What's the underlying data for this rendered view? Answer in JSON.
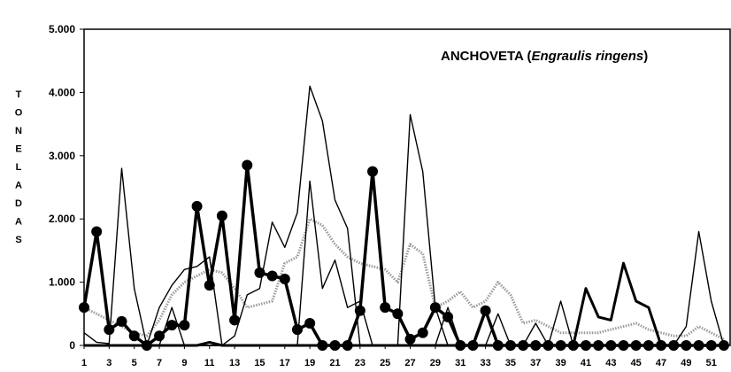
{
  "chart_data": {
    "type": "line",
    "title_main": "ANCHOVETA (",
    "title_italic": "Engraulis ringens",
    "title_close": ")",
    "ylabel": "TONELADAS",
    "ylabel_letters": [
      "T",
      "O",
      "N",
      "E",
      "L",
      "A",
      "D",
      "A",
      "S"
    ],
    "xlabel": "",
    "ylim": [
      0,
      5000
    ],
    "yticks": [
      0,
      1000,
      2000,
      3000,
      4000,
      5000
    ],
    "ytick_labels": [
      "0",
      "1.000",
      "2.000",
      "3.000",
      "4.000",
      "5.000"
    ],
    "xlim": [
      1,
      52
    ],
    "xticks": [
      1,
      3,
      5,
      7,
      9,
      11,
      13,
      15,
      17,
      19,
      21,
      23,
      25,
      27,
      29,
      31,
      33,
      35,
      37,
      39,
      41,
      43,
      45,
      47,
      49,
      51
    ],
    "grid": false,
    "legend": "none",
    "x": [
      1,
      2,
      3,
      4,
      5,
      6,
      7,
      8,
      9,
      10,
      11,
      12,
      13,
      14,
      15,
      16,
      17,
      18,
      19,
      20,
      21,
      22,
      23,
      24,
      25,
      26,
      27,
      28,
      29,
      30,
      31,
      32,
      33,
      34,
      35,
      36,
      37,
      38,
      39,
      40,
      41,
      42,
      43,
      44,
      45,
      46,
      47,
      48,
      49,
      50,
      51,
      52
    ],
    "series": [
      {
        "style": "thick-markers",
        "color": "#000000",
        "values": [
          600,
          1800,
          250,
          380,
          150,
          0,
          150,
          320,
          320,
          2200,
          950,
          2050,
          400,
          2850,
          1150,
          1100,
          1050,
          250,
          350,
          0,
          0,
          0,
          550,
          2750,
          600,
          500,
          100,
          200,
          600,
          450,
          0,
          0,
          550,
          0,
          0,
          0,
          0,
          0,
          0,
          0,
          0,
          0,
          0,
          0,
          0,
          0,
          0,
          0,
          0,
          0,
          0,
          0
        ]
      },
      {
        "style": "thin",
        "color": "#000000",
        "values": [
          200,
          50,
          30,
          2800,
          900,
          0,
          0,
          600,
          0,
          0,
          0,
          0,
          0,
          0,
          0,
          0,
          0,
          0,
          2600,
          900,
          1350,
          600,
          700,
          0,
          0,
          0,
          0,
          0,
          0,
          0,
          0,
          0,
          0,
          0,
          0,
          0,
          0,
          0,
          0,
          0,
          0,
          0,
          0,
          0,
          0,
          0,
          0,
          0,
          0,
          0,
          0,
          0
        ]
      },
      {
        "style": "thin",
        "color": "#000000",
        "values": [
          0,
          0,
          0,
          0,
          0,
          0,
          600,
          950,
          1200,
          1250,
          1400,
          0,
          150,
          800,
          900,
          1950,
          1550,
          2100,
          4100,
          3550,
          2300,
          1850,
          0,
          0,
          0,
          0,
          3650,
          2750,
          600,
          0,
          0,
          0,
          0,
          0,
          0,
          0,
          0,
          0,
          0,
          0,
          0,
          0,
          0,
          0,
          0,
          0,
          0,
          0,
          0,
          0,
          0,
          0
        ]
      },
      {
        "style": "thick",
        "color": "#000000",
        "values": [
          0,
          0,
          0,
          0,
          0,
          0,
          0,
          0,
          0,
          0,
          50,
          0,
          0,
          0,
          0,
          0,
          0,
          0,
          0,
          0,
          0,
          0,
          0,
          0,
          0,
          0,
          0,
          0,
          0,
          0,
          0,
          0,
          0,
          0,
          0,
          0,
          0,
          0,
          0,
          0,
          900,
          450,
          400,
          1300,
          700,
          600,
          0,
          0,
          0,
          0,
          0,
          0
        ]
      },
      {
        "style": "thin",
        "color": "#000000",
        "values": [
          0,
          0,
          0,
          0,
          0,
          0,
          0,
          0,
          0,
          0,
          0,
          0,
          0,
          0,
          0,
          0,
          0,
          0,
          0,
          0,
          0,
          0,
          0,
          0,
          0,
          0,
          0,
          0,
          0,
          600,
          0,
          0,
          0,
          500,
          0,
          0,
          350,
          0,
          700,
          0,
          0,
          0,
          0,
          0,
          0,
          0,
          0,
          0,
          300,
          1800,
          700,
          0
        ]
      },
      {
        "style": "dotted",
        "color": "#9a9a9a",
        "values": [
          600,
          500,
          400,
          300,
          200,
          150,
          400,
          800,
          1000,
          1100,
          1200,
          1150,
          900,
          600,
          650,
          700,
          1300,
          1400,
          2000,
          1900,
          1600,
          1400,
          1300,
          1250,
          1200,
          1000,
          1600,
          1450,
          600,
          700,
          850,
          600,
          700,
          1000,
          800,
          350,
          400,
          300,
          200,
          200,
          200,
          200,
          250,
          300,
          350,
          250,
          200,
          150,
          150,
          300,
          200,
          100
        ]
      }
    ]
  }
}
